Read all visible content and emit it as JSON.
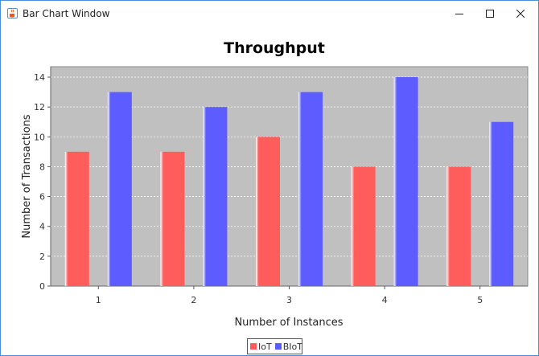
{
  "window": {
    "title": "Bar Chart Window",
    "icons": {
      "app": "java-coffee-icon",
      "minimize": "minimize-icon",
      "maximize": "maximize-icon",
      "close": "close-icon"
    }
  },
  "colors": {
    "plot_background": "#c0c0c0",
    "iot": "#ff5c5c",
    "biot": "#5c5cff",
    "gridline": "#ffffff"
  },
  "chart_data": {
    "type": "bar",
    "title": "Throughput",
    "xlabel": "Number of Instances",
    "ylabel": "Number of Transactions",
    "categories": [
      "1",
      "2",
      "3",
      "4",
      "5"
    ],
    "series": [
      {
        "name": "IoT",
        "values": [
          9,
          9,
          10,
          8,
          8
        ]
      },
      {
        "name": "BIoT",
        "values": [
          13,
          12,
          13,
          14,
          11
        ]
      }
    ],
    "ylim": [
      0,
      14.7
    ],
    "yticks": [
      "0",
      "2",
      "4",
      "6",
      "8",
      "10",
      "12",
      "14"
    ],
    "grid": true,
    "legend": "bottom-center"
  }
}
